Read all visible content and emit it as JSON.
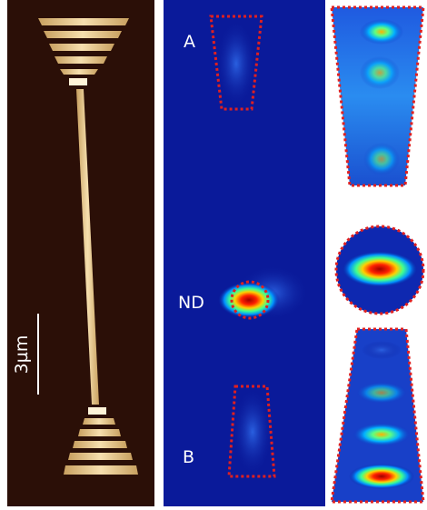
{
  "labels": {
    "a": "A",
    "nd": "ND",
    "b": "B",
    "scale": "3µm"
  }
}
